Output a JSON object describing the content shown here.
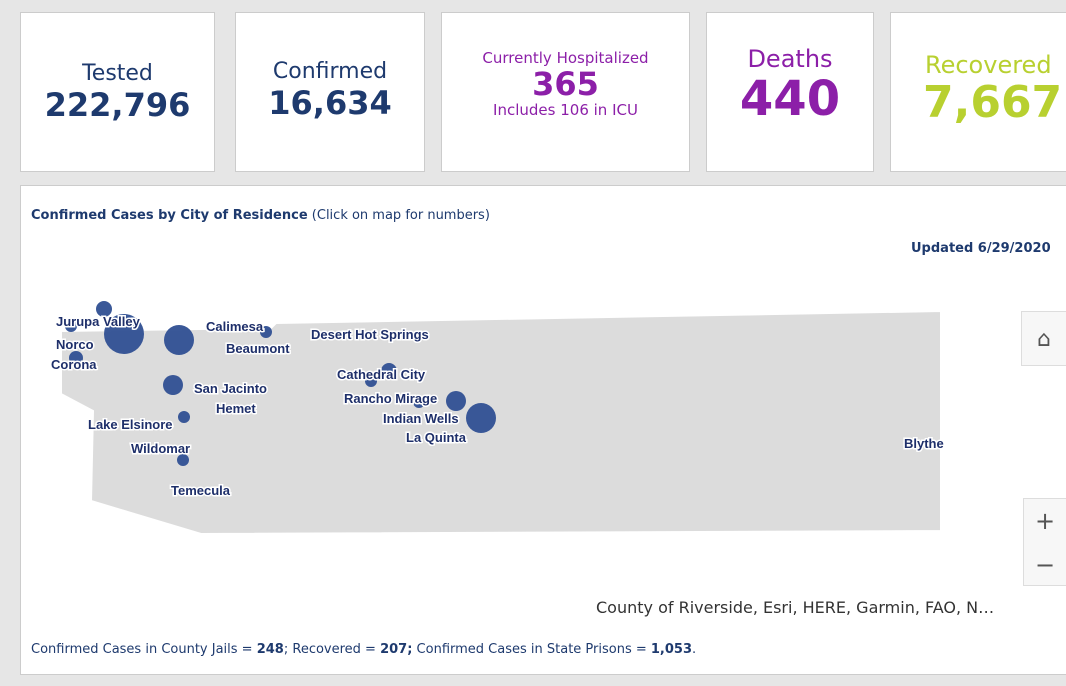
{
  "cards": [
    {
      "label": "Tested",
      "value": "222,796"
    },
    {
      "label": "Confirmed",
      "value": "16,634"
    },
    {
      "label": "Currently Hospitalized",
      "value": "365",
      "note": "Includes 106 in ICU"
    },
    {
      "label": "Deaths",
      "value": "440"
    },
    {
      "label": "Recovered",
      "value": "7,667"
    }
  ],
  "map": {
    "title": "Confirmed Cases by City of Residence",
    "hint": "(Click on map for numbers)",
    "updated": "Updated 6/29/2020",
    "cities": [
      "Jurupa Valley",
      "Norco",
      "Corona",
      "Calimesa",
      "Beaumont",
      "Desert Hot Springs",
      "San Jacinto",
      "Hemet",
      "Cathedral City",
      "Rancho Mirage",
      "Lake Elsinore",
      "Indian Wells",
      "La Quinta",
      "Wildomar",
      "Blythe",
      "Temecula"
    ],
    "attribution": "County of Riverside, Esri, HERE, Garmin, FAO, N…",
    "zoom_in": "+",
    "zoom_out": "−"
  },
  "footer": {
    "jails_label": "Confirmed Cases in County Jails = ",
    "jails": "248",
    "recovered_label": "; Recovered = ",
    "recovered": "207;",
    "prisons_label": " Confirmed Cases in State Prisons = ",
    "prisons": "1,053",
    "end": "."
  }
}
